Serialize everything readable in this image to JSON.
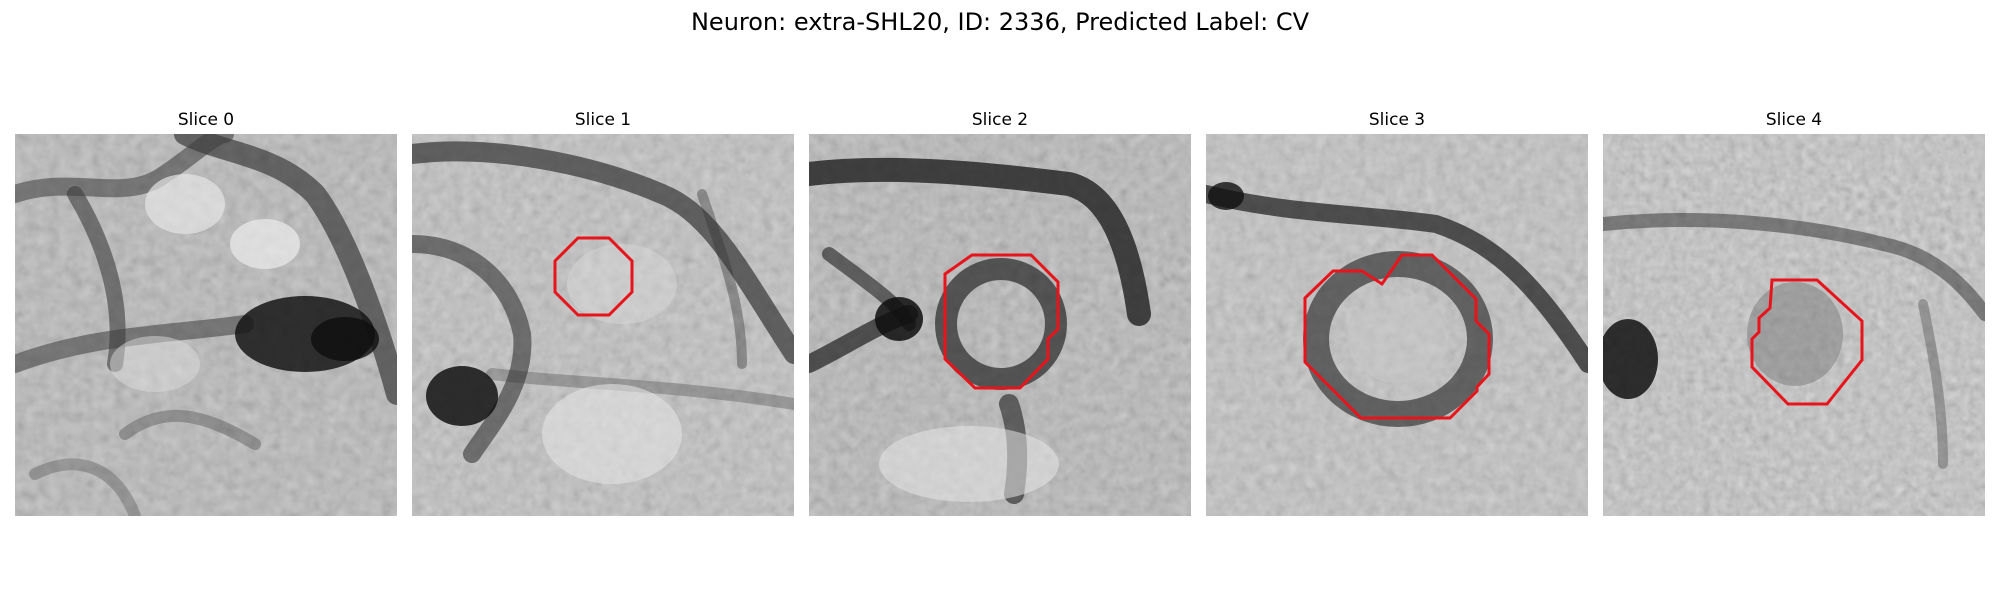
{
  "figure": {
    "title": "Neuron: extra-SHL20, ID: 2336, Predicted Label: CV",
    "outline_color": "#e8141b"
  },
  "panels": [
    {
      "title": "Slice 0"
    },
    {
      "title": "Slice 1"
    },
    {
      "title": "Slice 2"
    },
    {
      "title": "Slice 3"
    },
    {
      "title": "Slice 4"
    }
  ]
}
